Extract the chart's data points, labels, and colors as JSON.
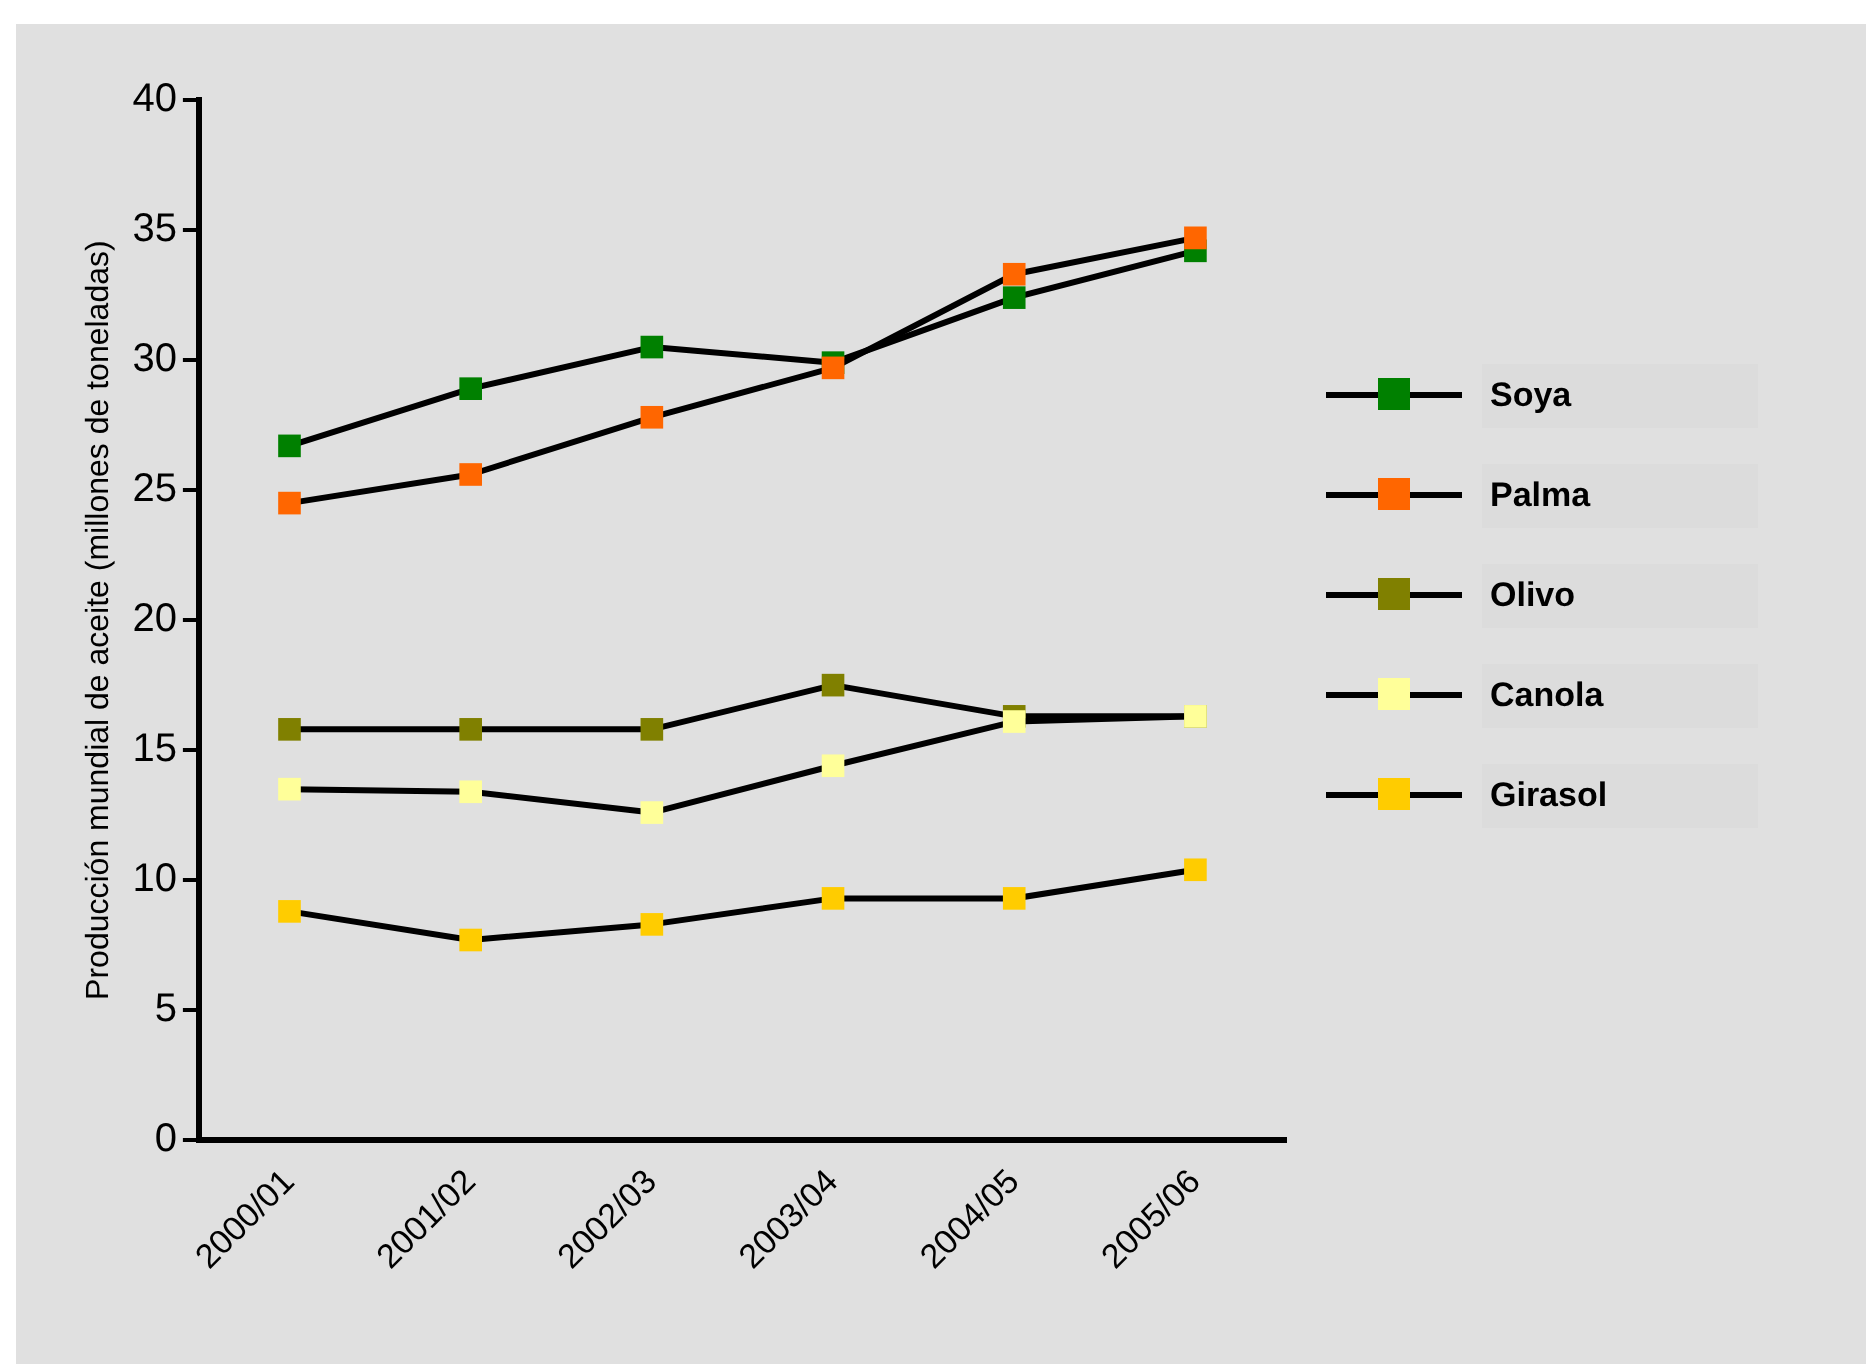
{
  "chart_data": {
    "type": "line",
    "ylabel": "Producción mundial de aceite (millones de toneladas)",
    "categories": [
      "2000/01",
      "2001/02",
      "2002/03",
      "2003/04",
      "2004/05",
      "2005/06"
    ],
    "series": [
      {
        "name": "Soya",
        "color": "#008000",
        "values": [
          26.7,
          28.9,
          30.5,
          29.9,
          32.4,
          34.2
        ]
      },
      {
        "name": "Palma",
        "color": "#ff6600",
        "values": [
          24.5,
          25.6,
          27.8,
          29.7,
          33.3,
          34.7
        ]
      },
      {
        "name": "Olivo",
        "color": "#808000",
        "values": [
          15.8,
          15.8,
          15.8,
          17.5,
          16.3,
          16.3
        ]
      },
      {
        "name": "Canola",
        "color": "#ffff99",
        "values": [
          13.5,
          13.4,
          12.6,
          14.4,
          16.1,
          16.3
        ]
      },
      {
        "name": "Girasol",
        "color": "#ffcc00",
        "values": [
          8.8,
          7.7,
          8.3,
          9.3,
          9.3,
          10.4
        ]
      }
    ],
    "ylim": [
      0,
      40
    ],
    "yticks": [
      0,
      5,
      10,
      15,
      20,
      25,
      30,
      35,
      40
    ],
    "grid": false,
    "legend": "right",
    "marker": "square",
    "line_style": "solid"
  }
}
